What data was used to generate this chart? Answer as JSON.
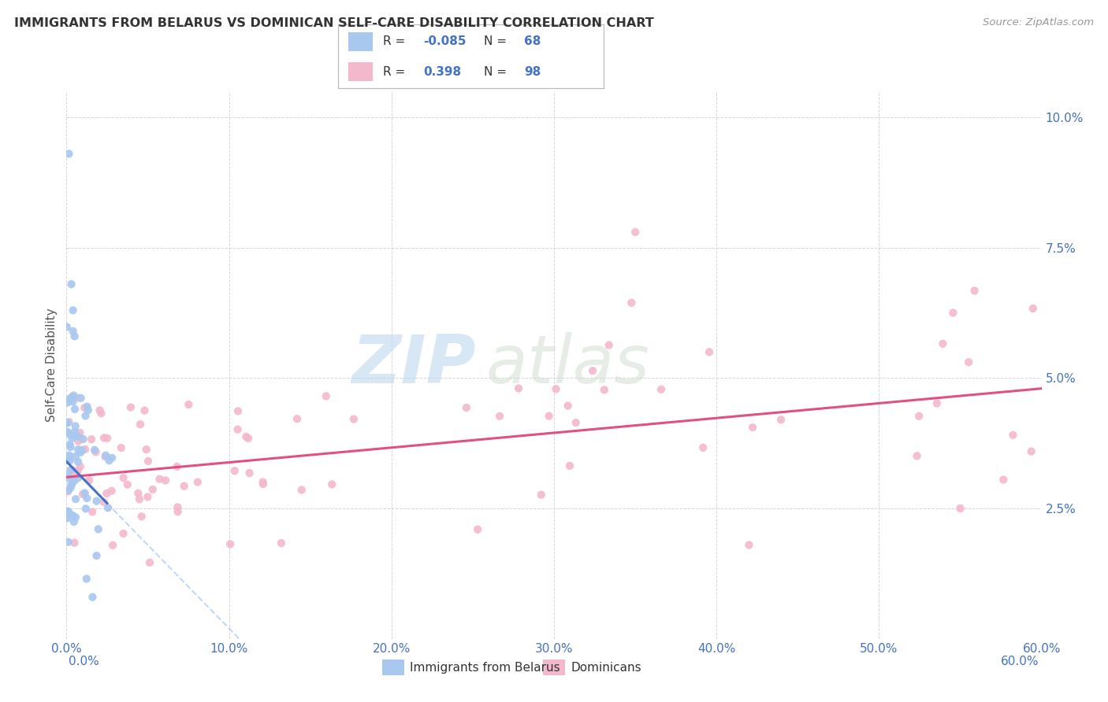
{
  "title": "IMMIGRANTS FROM BELARUS VS DOMINICAN SELF-CARE DISABILITY CORRELATION CHART",
  "source": "Source: ZipAtlas.com",
  "ylabel": "Self-Care Disability",
  "legend_label_blue": "Immigrants from Belarus",
  "legend_label_pink": "Dominicans",
  "R_blue": -0.085,
  "N_blue": 68,
  "R_pink": 0.398,
  "N_pink": 98,
  "watermark_zip": "ZIP",
  "watermark_atlas": "atlas",
  "blue_color": "#A8C8F0",
  "pink_color": "#F4B8CC",
  "blue_line_color": "#4472C4",
  "pink_line_color": "#E05080",
  "dashed_line_color": "#A8C8F0",
  "xlim": [
    0.0,
    0.6
  ],
  "ylim": [
    0.0,
    0.105
  ],
  "xtick_vals": [
    0.0,
    0.1,
    0.2,
    0.3,
    0.4,
    0.5,
    0.6
  ],
  "xtick_labels": [
    "0.0%",
    "10.0%",
    "20.0%",
    "30.0%",
    "40.0%",
    "50.0%",
    "60.0%"
  ],
  "ytick_vals": [
    0.025,
    0.05,
    0.075,
    0.1
  ],
  "ytick_labels": [
    "2.5%",
    "5.0%",
    "7.5%",
    "10.0%"
  ],
  "background_color": "#ffffff",
  "grid_color": "#cccccc",
  "tick_color": "#4472C4",
  "title_color": "#333333",
  "source_color": "#999999",
  "ylabel_color": "#555555",
  "legend_text_color": "#333333",
  "legend_value_color": "#4472C4"
}
